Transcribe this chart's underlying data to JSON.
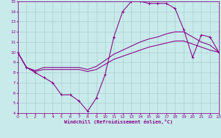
{
  "xlabel": "Windchill (Refroidissement éolien,°C)",
  "xlim": [
    0,
    23
  ],
  "ylim": [
    4,
    15
  ],
  "xticks": [
    0,
    1,
    2,
    3,
    4,
    5,
    6,
    7,
    8,
    9,
    10,
    11,
    12,
    13,
    14,
    15,
    16,
    17,
    18,
    19,
    20,
    21,
    22,
    23
  ],
  "yticks": [
    4,
    5,
    6,
    7,
    8,
    9,
    10,
    11,
    12,
    13,
    14,
    15
  ],
  "bg_color": "#c8eaea",
  "grid_color": "#a8d0d0",
  "line_color": "#880088",
  "c1_x": [
    0,
    1,
    2,
    3,
    4,
    5,
    6,
    7,
    8,
    9,
    10,
    11,
    12,
    13,
    14,
    15,
    16,
    17,
    18,
    19,
    20,
    21,
    22,
    23
  ],
  "c1_y": [
    10.0,
    8.5,
    8.0,
    7.5,
    7.0,
    5.8,
    5.8,
    5.2,
    4.2,
    5.5,
    7.8,
    11.5,
    14.0,
    15.0,
    15.0,
    14.8,
    14.8,
    14.8,
    14.3,
    12.2,
    9.5,
    11.7,
    11.5,
    10.0
  ],
  "c2_x": [
    0,
    1,
    2,
    3,
    4,
    5,
    6,
    7,
    8,
    9,
    10,
    11,
    12,
    13,
    14,
    15,
    16,
    17,
    18,
    19,
    20,
    21,
    22,
    23
  ],
  "c2_y": [
    10.0,
    8.5,
    8.1,
    8.3,
    8.3,
    8.3,
    8.3,
    8.3,
    8.1,
    8.3,
    8.8,
    9.3,
    9.6,
    9.9,
    10.2,
    10.5,
    10.7,
    10.9,
    11.1,
    11.1,
    10.8,
    10.5,
    10.2,
    10.0
  ],
  "c3_x": [
    0,
    1,
    2,
    3,
    4,
    5,
    6,
    7,
    8,
    9,
    10,
    11,
    12,
    13,
    14,
    15,
    16,
    17,
    18,
    19,
    20,
    21,
    22,
    23
  ],
  "c3_y": [
    10.0,
    8.5,
    8.2,
    8.5,
    8.5,
    8.5,
    8.5,
    8.5,
    8.3,
    8.6,
    9.2,
    9.8,
    10.2,
    10.6,
    11.0,
    11.3,
    11.5,
    11.8,
    12.0,
    12.0,
    11.5,
    11.0,
    10.7,
    10.0
  ]
}
